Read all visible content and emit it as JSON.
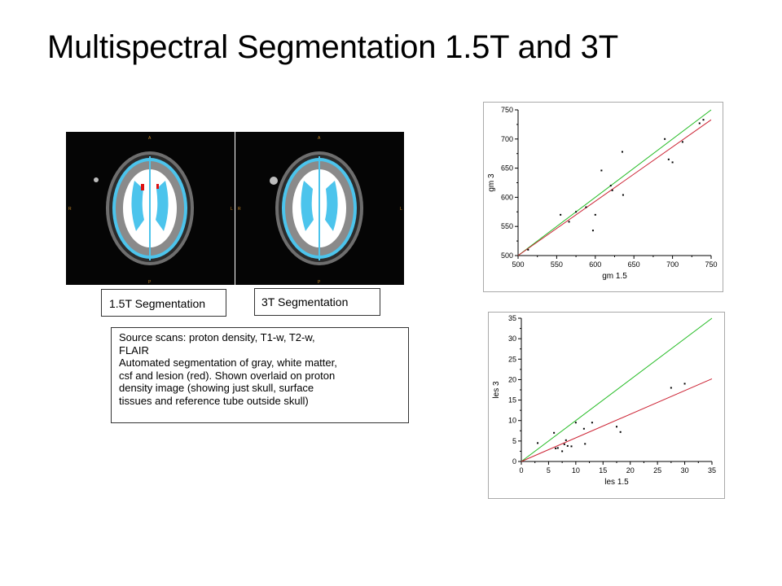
{
  "title": "Multispectral Segmentation 1.5T and 3T",
  "panels": [
    {
      "label": "1.5T Segmentation",
      "letters": {
        "top": "A",
        "bottom": "P",
        "left": "R",
        "right": "L"
      }
    },
    {
      "label": "3T Segmentation",
      "letters": {
        "top": "A",
        "bottom": "P",
        "left": "R",
        "right": "L"
      }
    }
  ],
  "caption": {
    "lines": [
      "Source scans: proton density, T1-w, T2-w,",
      "FLAIR",
      "Automated segmentation of gray, white matter,",
      "csf and lesion (red). Shown overlaid on proton",
      "density image (showing just skull, surface",
      "tissues and reference tube outside skull)"
    ]
  },
  "colors": {
    "identity_line": "#22bb22",
    "fit_line": "#cc2233",
    "csf": "#4cc4ec",
    "gray_matter": "#8a8a8a",
    "white_matter": "#ffffff",
    "lesion": "#dd1111"
  },
  "chart_data": [
    {
      "type": "scatter",
      "xlabel": "gm 1.5",
      "ylabel": "gm 3",
      "xlim": [
        500,
        750
      ],
      "ylim": [
        500,
        750
      ],
      "xticks": [
        500,
        550,
        600,
        650,
        700,
        750
      ],
      "yticks": [
        500,
        550,
        600,
        650,
        700,
        750
      ],
      "points": [
        [
          513,
          510
        ],
        [
          555,
          570
        ],
        [
          566,
          558
        ],
        [
          575,
          575
        ],
        [
          588,
          583
        ],
        [
          597,
          543
        ],
        [
          600,
          570
        ],
        [
          608,
          646
        ],
        [
          620,
          620
        ],
        [
          622,
          612
        ],
        [
          635,
          678
        ],
        [
          636,
          604
        ],
        [
          690,
          700
        ],
        [
          695,
          665
        ],
        [
          700,
          660
        ],
        [
          713,
          695
        ],
        [
          735,
          727
        ],
        [
          740,
          733
        ]
      ],
      "lines": [
        {
          "kind": "identity",
          "from": [
            500,
            500
          ],
          "to": [
            750,
            750
          ]
        },
        {
          "kind": "fit",
          "from": [
            500,
            500
          ],
          "to": [
            750,
            733
          ]
        }
      ]
    },
    {
      "type": "scatter",
      "xlabel": "les 1.5",
      "ylabel": "les 3",
      "xlim": [
        0,
        35
      ],
      "ylim": [
        0,
        35
      ],
      "xticks": [
        0,
        5,
        10,
        15,
        20,
        25,
        30,
        35
      ],
      "yticks": [
        0,
        5,
        10,
        15,
        20,
        25,
        30,
        35
      ],
      "points": [
        [
          3,
          4.5
        ],
        [
          6,
          7
        ],
        [
          6.3,
          3.2
        ],
        [
          6.7,
          3.3
        ],
        [
          7.5,
          2.5
        ],
        [
          7.9,
          4.2
        ],
        [
          8.2,
          5.2
        ],
        [
          8.5,
          3.8
        ],
        [
          9.2,
          3.7
        ],
        [
          10,
          9.5
        ],
        [
          11.5,
          8
        ],
        [
          11.7,
          4.3
        ],
        [
          13,
          9.5
        ],
        [
          17.5,
          8.5
        ],
        [
          18.2,
          7.2
        ],
        [
          27.5,
          18
        ],
        [
          30,
          19
        ]
      ],
      "lines": [
        {
          "kind": "identity",
          "from": [
            0,
            0
          ],
          "to": [
            35,
            35
          ]
        },
        {
          "kind": "fit",
          "from": [
            0,
            0
          ],
          "to": [
            35,
            20.2
          ]
        }
      ]
    }
  ]
}
